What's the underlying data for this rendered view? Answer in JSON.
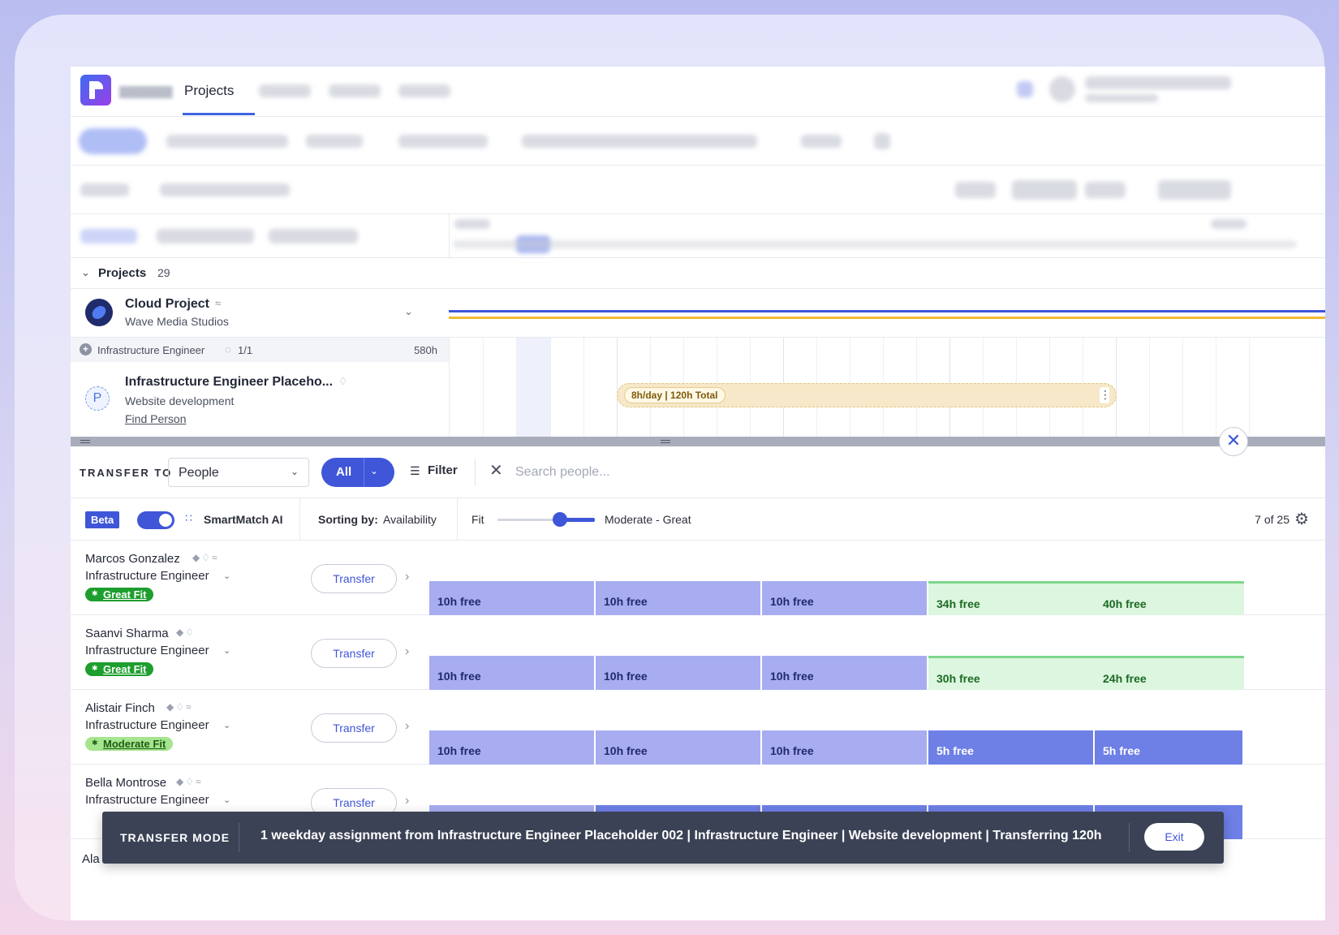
{
  "nav": {
    "active_tab": "Projects"
  },
  "projects_header": {
    "label": "Projects",
    "count": "29"
  },
  "cloud_project": {
    "title": "Cloud Project",
    "client": "Wave Media Studios"
  },
  "role_row": {
    "label": "Infrastructure Engineer",
    "ratio": "1/1",
    "hours": "580h"
  },
  "placeholder": {
    "avatar_letter": "P",
    "title": "Infrastructure Engineer Placeho...",
    "subtitle": "Website development",
    "link": "Find Person",
    "allocation": "8h/day | 120h Total"
  },
  "transfer_toolbar": {
    "label": "TRANSFER TO",
    "select_value": "People",
    "scope_button": "All",
    "filter_label": "Filter",
    "search_placeholder": "Search people..."
  },
  "smartmatch": {
    "beta": "Beta",
    "label": "SmartMatch AI",
    "sorting_label": "Sorting by:",
    "sorting_value": "Availability",
    "fit_label": "Fit",
    "fit_value": "Moderate - Great",
    "count": "7 of 25"
  },
  "people": [
    {
      "name": "Marcos Gonzalez",
      "role": "Infrastructure Engineer",
      "fit": "Great Fit",
      "transfer": "Transfer",
      "cells": [
        "10h free",
        "10h free",
        "10h free",
        "34h free",
        "40h free"
      ]
    },
    {
      "name": "Saanvi Sharma",
      "role": "Infrastructure Engineer",
      "fit": "Great Fit",
      "transfer": "Transfer",
      "cells": [
        "10h free",
        "10h free",
        "10h free",
        "30h free",
        "24h free"
      ]
    },
    {
      "name": "Alistair Finch",
      "role": "Infrastructure Engineer",
      "fit": "Moderate Fit",
      "transfer": "Transfer",
      "cells": [
        "10h free",
        "10h free",
        "10h free",
        "5h free",
        "5h free"
      ]
    },
    {
      "name": "Bella Montrose",
      "role": "Infrastructure Engineer",
      "transfer": "Transfer"
    }
  ],
  "cut_name": "Ala",
  "banner": {
    "mode": "TRANSFER MODE",
    "message": "1 weekday assignment from Infrastructure Engineer Placeholder 002 | Infrastructure Engineer | Website development | Transferring 120h",
    "exit": "Exit"
  },
  "colors": {
    "accent": "#3f56d8",
    "great_fit": "#1e9e2e",
    "moderate_fit": "#a5e58d",
    "free_lavender": "#a7adf0",
    "free_dark": "#6e7fe6",
    "free_green": "#dcf6e0",
    "banner": "#3b4255"
  }
}
